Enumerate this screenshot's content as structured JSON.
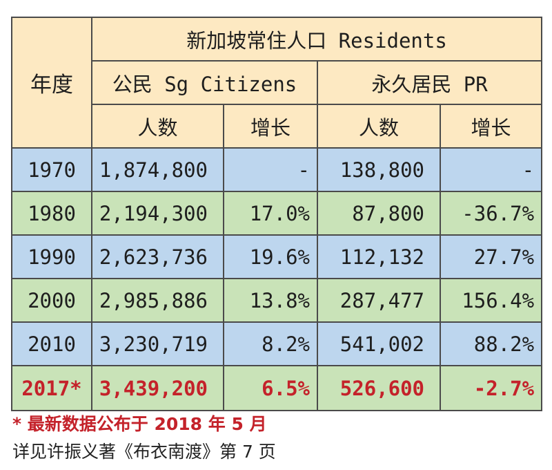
{
  "table": {
    "year_header": "年度",
    "title": "新加坡常住人口 Residents",
    "group_citizens": "公民 Sg Citizens",
    "group_pr": "永久居民 PR",
    "col_people": "人数",
    "col_growth": "增长",
    "rows": [
      {
        "year": "1970",
        "citizens": "1,874,800",
        "citizens_growth": "-",
        "pr": "138,800",
        "pr_growth": "-"
      },
      {
        "year": "1980",
        "citizens": "2,194,300",
        "citizens_growth": "17.0%",
        "pr": "87,800",
        "pr_growth": "-36.7%"
      },
      {
        "year": "1990",
        "citizens": "2,623,736",
        "citizens_growth": "19.6%",
        "pr": "112,132",
        "pr_growth": "27.7%"
      },
      {
        "year": "2000",
        "citizens": "2,985,886",
        "citizens_growth": "13.8%",
        "pr": "287,477",
        "pr_growth": "156.4%"
      },
      {
        "year": "2010",
        "citizens": "3,230,719",
        "citizens_growth": "8.2%",
        "pr": "541,002",
        "pr_growth": "88.2%"
      },
      {
        "year": "2017*",
        "citizens": "3,439,200",
        "citizens_growth": "6.5%",
        "pr": "526,600",
        "pr_growth": "-2.7%"
      }
    ]
  },
  "notes": {
    "latest": "* 最新数据公布于 2018 年 5 月",
    "source": "详见许振义著《布衣南渡》第 7 页"
  },
  "colors": {
    "header_bg": "#fde9c2",
    "row_blue": "#bdd6ee",
    "row_green": "#c9e3b8",
    "highlight_red": "#c4222a"
  }
}
